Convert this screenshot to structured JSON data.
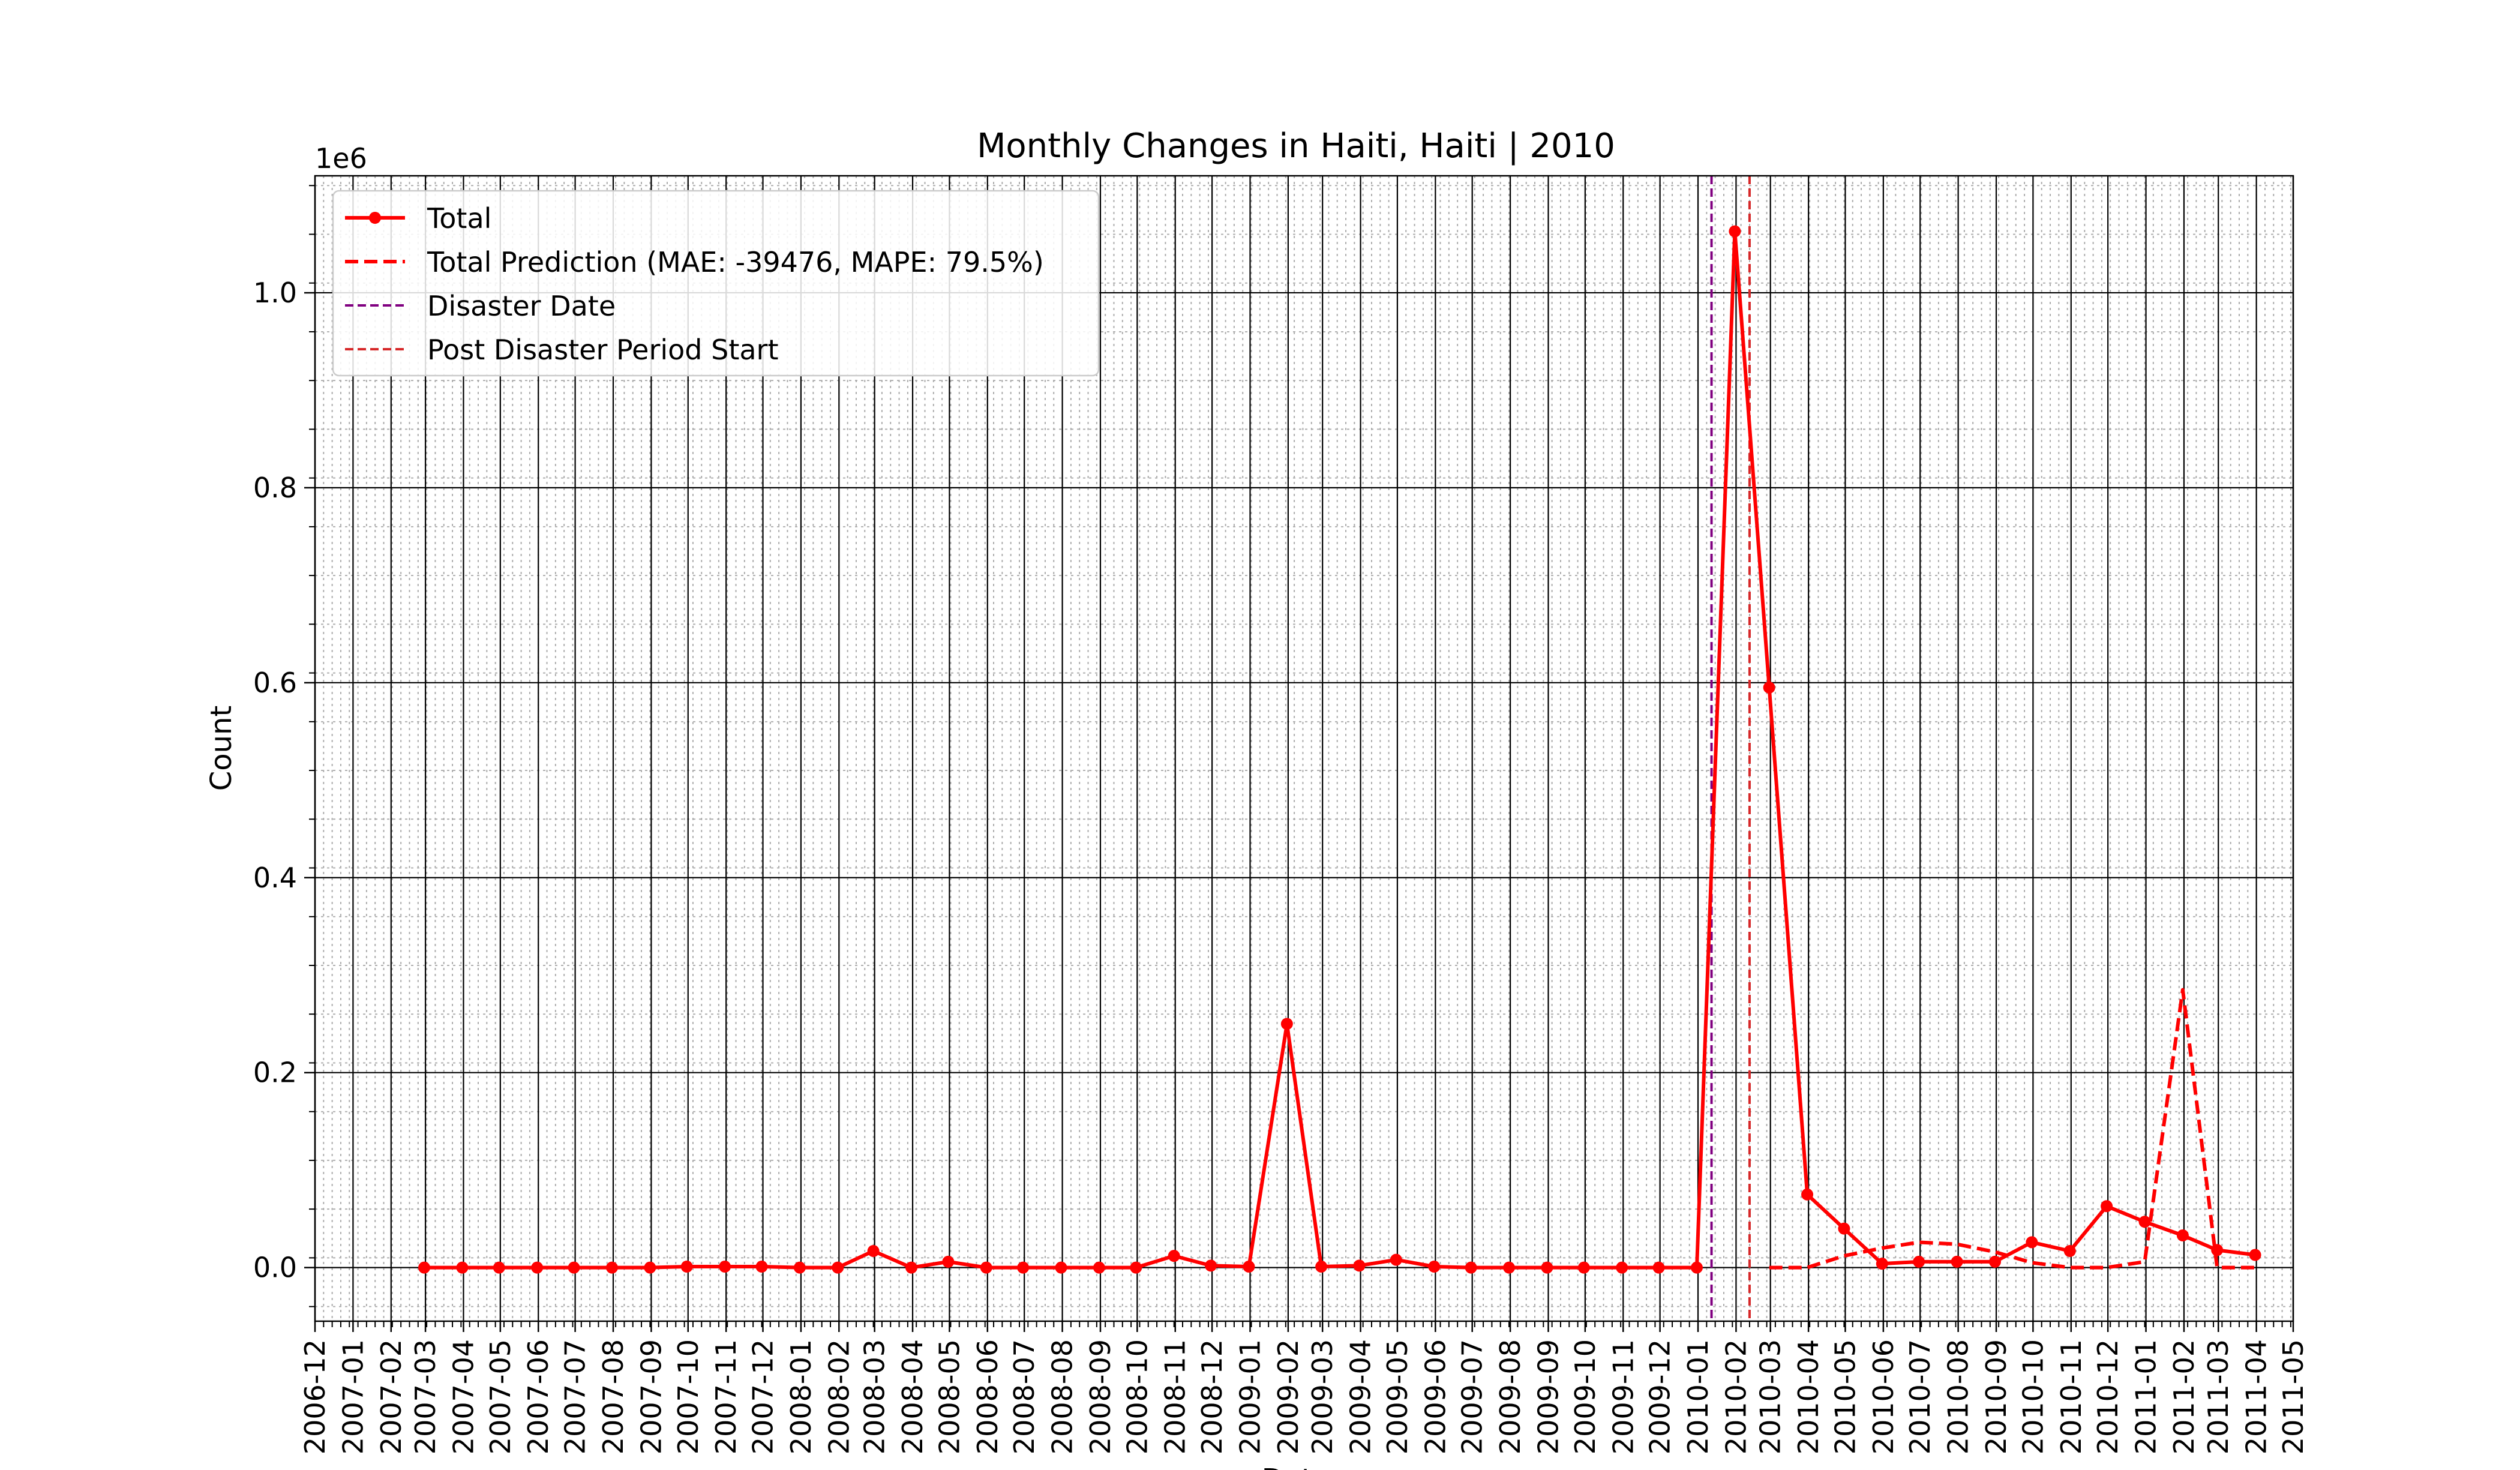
{
  "chart_data": {
    "type": "line",
    "title": "Monthly Changes in Haiti, Haiti | 2010",
    "xlabel": "Date",
    "ylabel": "Count",
    "y_offset_label": "1e6",
    "y_scale_factor": 1000000,
    "xlim": [
      "2006-12-01",
      "2011-05-01"
    ],
    "ylim": [
      -0.055,
      1.12
    ],
    "y_ticks": [
      0.0,
      0.2,
      0.4,
      0.6,
      0.8,
      1.0
    ],
    "y_tick_labels": [
      "0.0",
      "0.2",
      "0.4",
      "0.6",
      "0.8",
      "1.0"
    ],
    "x_ticks": [
      "2006-12",
      "2007-01",
      "2007-02",
      "2007-03",
      "2007-04",
      "2007-05",
      "2007-06",
      "2007-07",
      "2007-08",
      "2007-09",
      "2007-10",
      "2007-11",
      "2007-12",
      "2008-01",
      "2008-02",
      "2008-03",
      "2008-04",
      "2008-05",
      "2008-06",
      "2008-07",
      "2008-08",
      "2008-09",
      "2008-10",
      "2008-11",
      "2008-12",
      "2009-01",
      "2009-02",
      "2009-03",
      "2009-04",
      "2009-05",
      "2009-06",
      "2009-07",
      "2009-08",
      "2009-09",
      "2009-10",
      "2009-11",
      "2009-12",
      "2010-01",
      "2010-02",
      "2010-03",
      "2010-04",
      "2010-05",
      "2010-06",
      "2010-07",
      "2010-08",
      "2010-09",
      "2010-10",
      "2010-11",
      "2010-12",
      "2011-01",
      "2011-02",
      "2011-03",
      "2011-04",
      "2011-05"
    ],
    "grid": true,
    "legend_position": "upper-left",
    "series": [
      {
        "name": "Total",
        "style": "solid-marker",
        "color": "#ff0000",
        "x": [
          "2007-02-28",
          "2007-03-31",
          "2007-04-30",
          "2007-05-31",
          "2007-06-30",
          "2007-07-31",
          "2007-08-31",
          "2007-09-30",
          "2007-10-31",
          "2007-11-30",
          "2007-12-31",
          "2008-01-31",
          "2008-02-29",
          "2008-03-31",
          "2008-04-30",
          "2008-05-31",
          "2008-06-30",
          "2008-07-31",
          "2008-08-31",
          "2008-09-30",
          "2008-10-31",
          "2008-11-30",
          "2008-12-31",
          "2009-01-31",
          "2009-02-28",
          "2009-03-31",
          "2009-04-30",
          "2009-05-31",
          "2009-06-30",
          "2009-07-31",
          "2009-08-31",
          "2009-09-30",
          "2009-10-31",
          "2009-11-30",
          "2009-12-31",
          "2010-01-31",
          "2010-02-28",
          "2010-03-31",
          "2010-04-30",
          "2010-05-31",
          "2010-06-30",
          "2010-07-31",
          "2010-08-31",
          "2010-09-30",
          "2010-10-31",
          "2010-11-30",
          "2010-12-31",
          "2011-01-31",
          "2011-02-28",
          "2011-03-31"
        ],
        "values": [
          0.0,
          0.0,
          0.0,
          0.0,
          0.0,
          0.0,
          0.0,
          0.001,
          0.001,
          0.001,
          0.0,
          0.0,
          0.017,
          0.0,
          0.006,
          0.0,
          0.0,
          0.0,
          0.0,
          0.0,
          0.012,
          0.002,
          0.001,
          0.25,
          0.001,
          0.002,
          0.008,
          0.001,
          0.0,
          0.0,
          0.0,
          0.0,
          0.0,
          0.0,
          0.0,
          1.063,
          0.595,
          0.075,
          0.04,
          0.004,
          0.006,
          0.006,
          0.006,
          0.026,
          0.017,
          0.063,
          0.047,
          0.033,
          0.018,
          0.013
        ]
      },
      {
        "name": "Total Prediction (MAE: -39476, MAPE: 79.5%)",
        "style": "dashed",
        "color": "#ff0000",
        "x": [
          "2010-02-28",
          "2010-03-31",
          "2010-04-30",
          "2010-05-31",
          "2010-06-30",
          "2010-07-31",
          "2010-08-31",
          "2010-09-30",
          "2010-10-31",
          "2010-11-30",
          "2010-12-31",
          "2011-01-31",
          "2011-02-28",
          "2011-03-31"
        ],
        "values": [
          0.0,
          0.0,
          0.012,
          0.02,
          0.026,
          0.024,
          0.016,
          0.005,
          0.0,
          0.0,
          0.006,
          0.285,
          0.0,
          0.0
        ]
      }
    ],
    "vertical_lines": [
      {
        "name": "Disaster Date",
        "date": "2010-01-12",
        "color": "#800080"
      },
      {
        "name": "Post Disaster Period Start",
        "date": "2010-02-12",
        "color": "#d62728"
      }
    ]
  }
}
